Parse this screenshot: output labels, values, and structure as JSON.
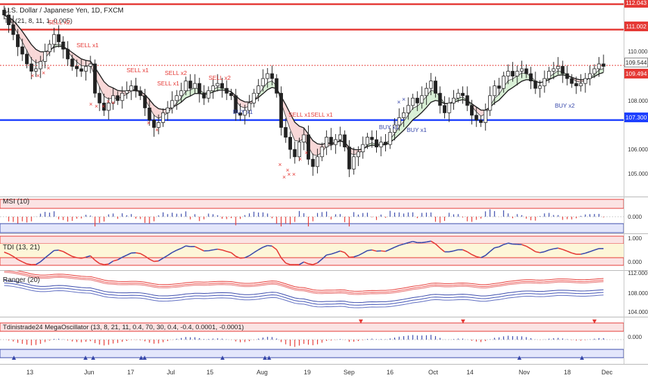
{
  "chart": {
    "title": "U.S. Dollar / Japanese Yen, 1D, FXCM",
    "overlay_label": "Tdi (21, 8, 11, 1, 0.005)",
    "price_axis": [
      "112.043",
      "111.002",
      "110.000",
      "109.544",
      "109.494",
      "108.000",
      "107.300",
      "106.000",
      "105.000"
    ],
    "price_tags": [
      {
        "label": "112.043",
        "color": "#e53935"
      },
      {
        "label": "111.002",
        "color": "#e53935"
      },
      {
        "label": "109.494",
        "color": "#e53935"
      },
      {
        "label": "107.300",
        "color": "#1e40ff"
      }
    ],
    "last_price": "109.544",
    "signals": [
      {
        "text": "SELL x2",
        "type": "sell"
      },
      {
        "text": "SELL x1",
        "type": "sell"
      },
      {
        "text": "SELL x1",
        "type": "sell"
      },
      {
        "text": "SELL x2",
        "type": "sell"
      },
      {
        "text": "SELL x1",
        "type": "sell"
      },
      {
        "text": "SELL x2",
        "type": "sell"
      },
      {
        "text": "SELL x1SELL x1",
        "type": "sell"
      },
      {
        "text": "BUY x1",
        "type": "buy"
      },
      {
        "text": "BUY x1",
        "type": "buy"
      },
      {
        "text": "BUY x1",
        "type": "buy"
      },
      {
        "text": "BUY x2",
        "type": "buy"
      }
    ]
  },
  "panes": {
    "msi": {
      "label": "MSI (10)",
      "axis": [
        "0.000"
      ]
    },
    "tdi": {
      "label": "TDI (13, 21)",
      "axis": [
        "1.000",
        "0.000"
      ]
    },
    "ranger": {
      "label": "Ranger (20)",
      "axis": [
        "112.000",
        "108.000",
        "104.000"
      ]
    },
    "mega": {
      "label": "Tdinistrade24 MegaOscillator (13, 8, 21, 11, 0.4, 70, 30, 0.4, -0.4, 0.0001, -0.0001)",
      "axis": [
        "0.000"
      ]
    }
  },
  "time_axis": [
    "13",
    "Jun",
    "17",
    "Jul",
    "15",
    "Aug",
    "19",
    "Sep",
    "16",
    "Oct",
    "14",
    "Nov",
    "18",
    "Dec"
  ],
  "colors": {
    "sell": "#e53935",
    "buy": "#3949ab",
    "candle": "#222222",
    "resistance": "#e53935",
    "support": "#1e40ff"
  },
  "chart_data": {
    "type": "candlestick",
    "symbol": "USDJPY",
    "timeframe": "1D",
    "ylim": [
      104.4,
      112.1
    ],
    "levels": [
      {
        "value": 112.043,
        "color": "red"
      },
      {
        "value": 111.002,
        "color": "red"
      },
      {
        "value": 109.494,
        "color": "red"
      },
      {
        "value": 107.3,
        "color": "blue"
      }
    ],
    "close": [
      111.6,
      111.2,
      110.8,
      110.3,
      110.0,
      109.6,
      109.3,
      109.4,
      109.7,
      110.1,
      110.4,
      110.8,
      110.5,
      110.2,
      109.8,
      109.5,
      109.4,
      109.3,
      109.5,
      109.6,
      108.4,
      108.0,
      107.7,
      108.0,
      108.3,
      108.1,
      108.4,
      108.5,
      108.7,
      108.5,
      108.3,
      107.8,
      107.3,
      107.0,
      107.2,
      107.6,
      107.8,
      108.1,
      108.3,
      108.5,
      108.9,
      108.6,
      108.8,
      108.4,
      108.2,
      108.5,
      108.7,
      108.8,
      108.6,
      108.4,
      108.3,
      107.6,
      107.5,
      107.7,
      108.0,
      108.4,
      108.7,
      109.0,
      109.2,
      109.0,
      108.4,
      107.0,
      106.6,
      106.1,
      105.8,
      106.4,
      106.7,
      105.7,
      105.4,
      105.8,
      106.2,
      106.6,
      106.3,
      106.5,
      106.7,
      106.2,
      105.3,
      105.8,
      106.0,
      106.3,
      106.6,
      106.5,
      106.2,
      106.4,
      106.3,
      106.8,
      107.1,
      107.4,
      107.6,
      107.9,
      108.2,
      108.0,
      108.3,
      108.6,
      108.9,
      108.4,
      107.9,
      107.6,
      108.0,
      108.2,
      108.4,
      108.3,
      107.9,
      107.5,
      107.3,
      107.2,
      107.7,
      108.3,
      108.7,
      108.6,
      109.1,
      109.3,
      109.1,
      109.3,
      109.4,
      109.2,
      108.9,
      108.6,
      108.7,
      109.0,
      109.3,
      109.4,
      109.5,
      109.2,
      109.0,
      108.8,
      108.7,
      108.8,
      109.0,
      109.2,
      109.4,
      109.6,
      109.5
    ]
  }
}
